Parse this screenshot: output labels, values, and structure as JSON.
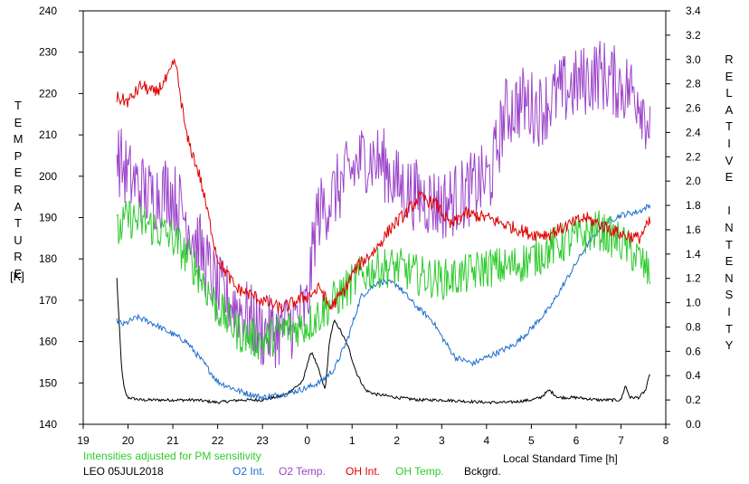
{
  "chart_data": {
    "type": "line",
    "left_axis_label": "TEMPERATURE",
    "left_axis_unit": "[K]",
    "right_axis_label": "RELATIVE INTENSITY",
    "x_axis_label": "Local Standard Time [h]",
    "note": "Intensities adjusted for PM sensitivity",
    "station": "LEO 05JUL2018",
    "x_range": [
      19,
      8
    ],
    "x_ticks": [
      "19",
      "20",
      "21",
      "22",
      "23",
      "0",
      "1",
      "2",
      "3",
      "4",
      "5",
      "6",
      "7",
      "8"
    ],
    "y_left_range": [
      140,
      240
    ],
    "y_left_ticks": [
      "140",
      "150",
      "160",
      "170",
      "180",
      "190",
      "200",
      "210",
      "220",
      "230",
      "240"
    ],
    "y_right_range": [
      0.0,
      3.4
    ],
    "y_right_ticks": [
      "0.0",
      "0.2",
      "0.4",
      "0.6",
      "0.8",
      "1.0",
      "1.2",
      "1.4",
      "1.6",
      "1.8",
      "2.0",
      "2.2",
      "2.4",
      "2.6",
      "2.8",
      "3.0",
      "3.2",
      "3.4"
    ],
    "series": [
      {
        "name": "O2 Int.",
        "color": "#1f6fd0",
        "axis": "right",
        "jitter": 0.025,
        "x": [
          19.75,
          19.9,
          20.2,
          20.5,
          20.8,
          21.3,
          21.7,
          22.0,
          22.5,
          23.0,
          23.5,
          24.0,
          24.3,
          24.6,
          24.9,
          25.2,
          25.6,
          26.0,
          26.4,
          26.8,
          27.0,
          27.3,
          27.7,
          28.0,
          28.3,
          28.6,
          28.9,
          29.4,
          29.8,
          30.2,
          30.6,
          31.0,
          31.4,
          31.65
        ],
        "y": [
          0.85,
          0.82,
          0.88,
          0.84,
          0.78,
          0.68,
          0.5,
          0.35,
          0.27,
          0.22,
          0.25,
          0.3,
          0.35,
          0.45,
          0.7,
          1.05,
          1.18,
          1.15,
          0.98,
          0.85,
          0.72,
          0.55,
          0.5,
          0.55,
          0.6,
          0.65,
          0.75,
          0.95,
          1.2,
          1.45,
          1.65,
          1.72,
          1.75,
          1.8
        ]
      },
      {
        "name": "O2 Temp.",
        "color": "#9b44c9",
        "axis": "left",
        "jitter": 9,
        "x": [
          19.75,
          20.0,
          20.5,
          20.9,
          21.3,
          21.7,
          22.0,
          22.5,
          23.0,
          23.5,
          24.0,
          24.2,
          24.9,
          25.3,
          25.7,
          26.0,
          26.5,
          27.0,
          27.4,
          27.8,
          28.1,
          28.4,
          28.8,
          29.2,
          29.6,
          30.0,
          30.5,
          31.0,
          31.4,
          31.65
        ],
        "y": [
          205,
          200,
          195,
          197,
          190,
          180,
          172,
          168,
          162,
          163,
          168,
          190,
          200,
          205,
          203,
          198,
          195,
          193,
          195,
          198,
          200,
          215,
          218,
          216,
          220,
          222,
          225,
          222,
          220,
          212
        ]
      },
      {
        "name": "OH Int.",
        "color": "#e00000",
        "axis": "left",
        "jitter": 1.6,
        "x": [
          19.75,
          20.0,
          20.3,
          20.6,
          20.9,
          21.05,
          21.3,
          21.6,
          22.0,
          22.4,
          23.0,
          23.4,
          23.8,
          24.0,
          24.3,
          24.5,
          24.8,
          25.1,
          25.5,
          25.9,
          26.2,
          26.5,
          26.9,
          27.2,
          27.5,
          28.0,
          28.5,
          29.0,
          29.4,
          29.8,
          30.2,
          30.6,
          31.0,
          31.4,
          31.65
        ],
        "y": [
          219,
          218,
          222,
          220,
          224,
          228,
          210,
          200,
          180,
          173,
          170,
          168,
          170,
          171,
          173,
          168,
          172,
          178,
          182,
          188,
          191,
          195,
          193,
          188,
          191,
          190,
          188,
          186,
          186,
          188,
          190,
          188,
          186,
          185,
          189
        ]
      },
      {
        "name": "OH Temp.",
        "color": "#2ecb2e",
        "axis": "left",
        "jitter": 5,
        "x": [
          19.75,
          20.0,
          20.5,
          21.0,
          21.5,
          22.0,
          22.5,
          23.0,
          23.5,
          24.0,
          24.4,
          24.8,
          25.2,
          25.6,
          26.0,
          26.5,
          27.0,
          27.5,
          28.0,
          28.5,
          29.0,
          29.5,
          30.0,
          30.5,
          31.0,
          31.4,
          31.65
        ],
        "y": [
          186,
          190,
          188,
          185,
          178,
          168,
          162,
          160,
          163,
          164,
          168,
          172,
          176,
          178,
          178,
          176,
          175,
          176,
          178,
          178,
          180,
          183,
          185,
          187,
          184,
          180,
          176
        ]
      },
      {
        "name": "Bckgrd.",
        "color": "#000000",
        "axis": "right",
        "jitter": 0.012,
        "x": [
          19.75,
          19.8,
          19.85,
          19.9,
          19.95,
          20.0,
          20.3,
          21.0,
          21.5,
          22.0,
          22.5,
          23.0,
          23.5,
          23.9,
          24.0,
          24.1,
          24.25,
          24.4,
          24.5,
          24.6,
          24.7,
          24.9,
          25.1,
          25.3,
          25.5,
          26.0,
          26.5,
          27.0,
          27.5,
          28.0,
          28.5,
          29.0,
          29.2,
          29.4,
          29.6,
          30.0,
          30.5,
          31.0,
          31.1,
          31.2,
          31.4,
          31.55,
          31.65
        ],
        "y": [
          1.2,
          0.85,
          0.5,
          0.32,
          0.25,
          0.22,
          0.2,
          0.2,
          0.2,
          0.18,
          0.2,
          0.2,
          0.24,
          0.35,
          0.5,
          0.6,
          0.45,
          0.28,
          0.7,
          0.85,
          0.8,
          0.65,
          0.42,
          0.28,
          0.25,
          0.22,
          0.2,
          0.2,
          0.19,
          0.18,
          0.18,
          0.2,
          0.22,
          0.28,
          0.22,
          0.22,
          0.2,
          0.2,
          0.32,
          0.22,
          0.22,
          0.28,
          0.42
        ]
      }
    ]
  }
}
